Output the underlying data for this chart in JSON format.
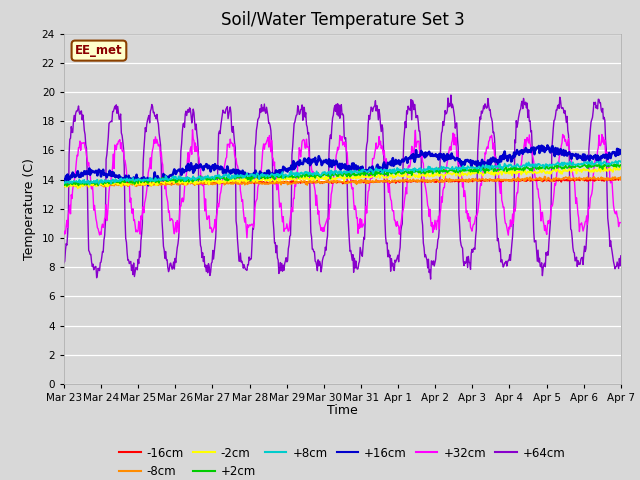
{
  "title": "Soil/Water Temperature Set 3",
  "xlabel": "Time",
  "ylabel": "Temperature (C)",
  "ylim": [
    0,
    24
  ],
  "yticks": [
    0,
    2,
    4,
    6,
    8,
    10,
    12,
    14,
    16,
    18,
    20,
    22,
    24
  ],
  "bg_color": "#d8d8d8",
  "legend_label": "EE_met",
  "series_colors": {
    "-16cm": "#ff0000",
    "-8cm": "#ff8c00",
    "-2cm": "#ffff00",
    "+2cm": "#00cc00",
    "+8cm": "#00cccc",
    "+16cm": "#0000cc",
    "+32cm": "#ff00ff",
    "+64cm": "#8800cc"
  },
  "date_labels": [
    "Mar 23",
    "Mar 24",
    "Mar 25",
    "Mar 26",
    "Mar 27",
    "Mar 28",
    "Mar 29",
    "Mar 30",
    "Mar 31",
    "Apr 1",
    "Apr 2",
    "Apr 3",
    "Apr 4",
    "Apr 5",
    "Apr 6",
    "Apr 7"
  ]
}
